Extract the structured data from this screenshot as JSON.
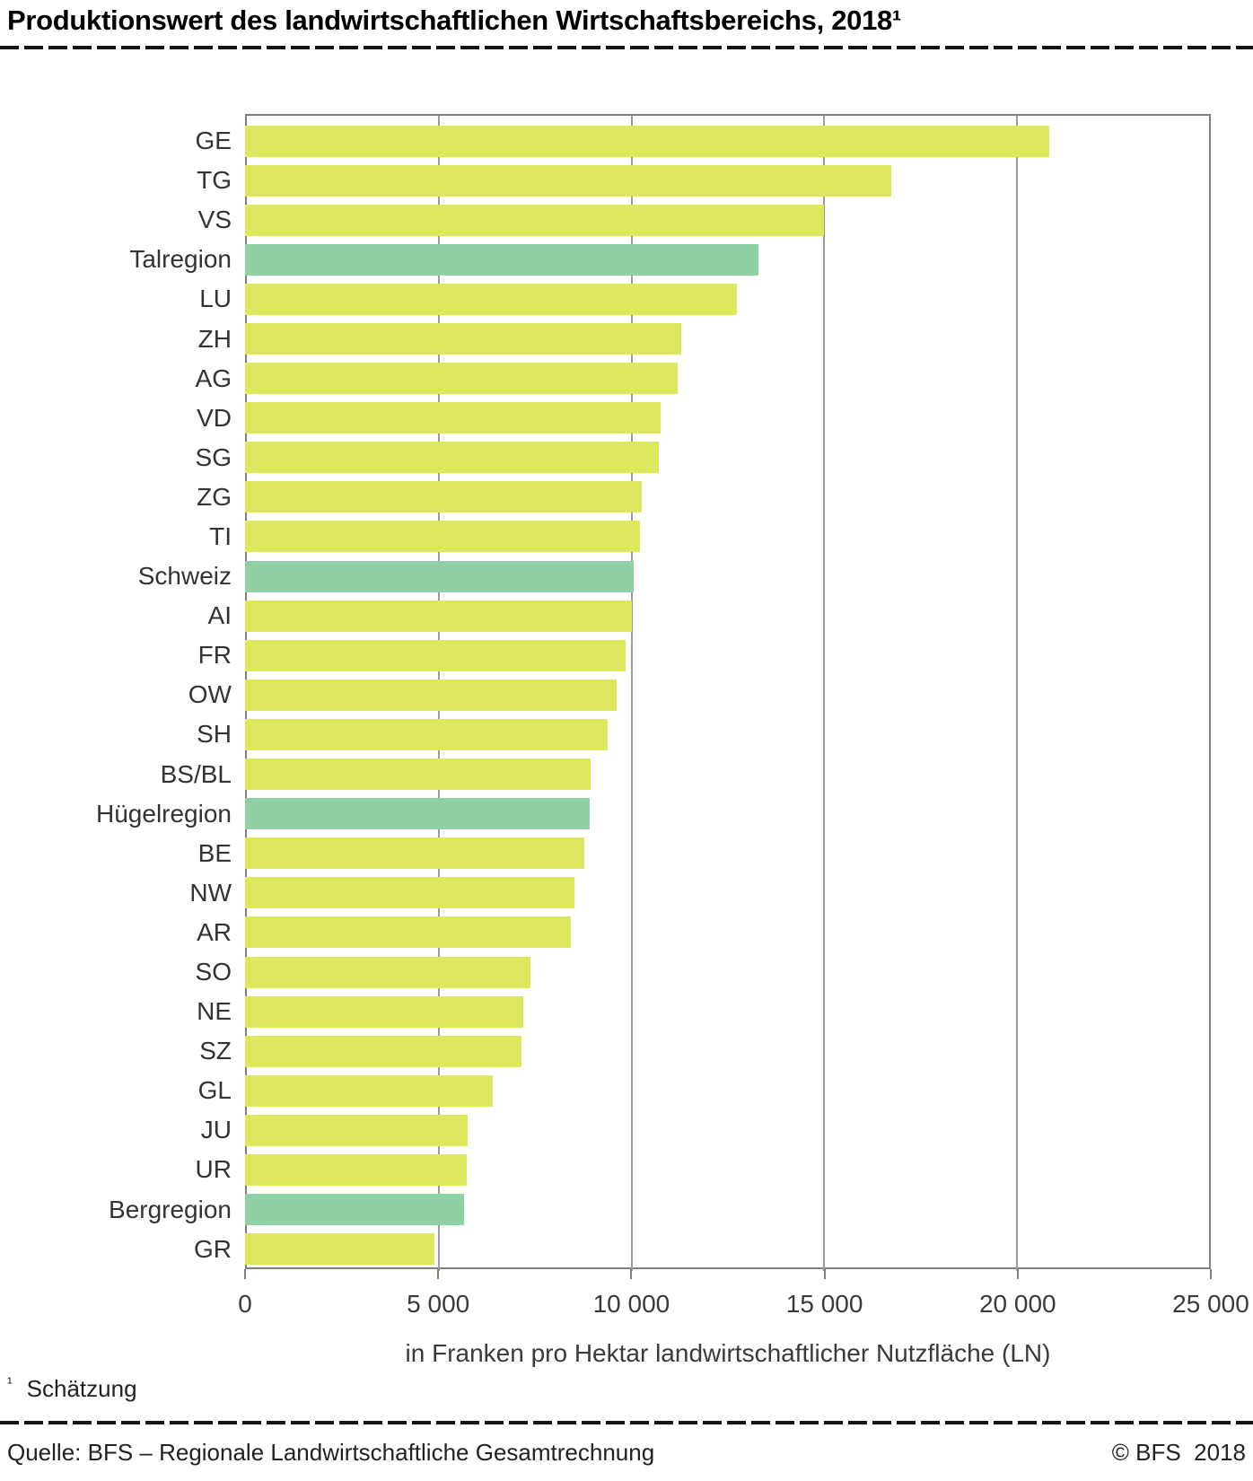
{
  "title": "Produktionswert des landwirtschaftlichen Wirtschaftsbereichs, 2018¹",
  "footnote": {
    "marker": "¹",
    "text": "Schätzung"
  },
  "source": {
    "left": "Quelle: BFS – Regionale Landwirtschaftliche Gesamtrechnung",
    "right": "© BFS  2018"
  },
  "chart_data": {
    "type": "bar",
    "orientation": "horizontal",
    "xlabel": "in Franken pro Hektar landwirtschaftlicher Nutzfläche (LN)",
    "xlim": [
      0,
      25000
    ],
    "xticks": [
      0,
      5000,
      10000,
      15000,
      20000,
      25000
    ],
    "xtick_labels": [
      "0",
      "5 000",
      "10 000",
      "15 000",
      "20 000",
      "25 000"
    ],
    "grid": "vertical",
    "legend": "none",
    "colors": {
      "canton": "#dde85f",
      "region": "#8fd1a4"
    },
    "bars": [
      {
        "label": "GE",
        "value": 20810,
        "type": "canton"
      },
      {
        "label": "TG",
        "value": 16730,
        "type": "canton"
      },
      {
        "label": "VS",
        "value": 14990,
        "type": "canton"
      },
      {
        "label": "Talregion",
        "value": 13280,
        "type": "region"
      },
      {
        "label": "LU",
        "value": 12740,
        "type": "canton"
      },
      {
        "label": "ZH",
        "value": 11290,
        "type": "canton"
      },
      {
        "label": "AG",
        "value": 11210,
        "type": "canton"
      },
      {
        "label": "VD",
        "value": 10760,
        "type": "canton"
      },
      {
        "label": "SG",
        "value": 10710,
        "type": "canton"
      },
      {
        "label": "ZG",
        "value": 10270,
        "type": "canton"
      },
      {
        "label": "TI",
        "value": 10220,
        "type": "canton"
      },
      {
        "label": "Schweiz",
        "value": 10060,
        "type": "region"
      },
      {
        "label": "AI",
        "value": 10020,
        "type": "canton"
      },
      {
        "label": "FR",
        "value": 9850,
        "type": "canton"
      },
      {
        "label": "OW",
        "value": 9620,
        "type": "canton"
      },
      {
        "label": "SH",
        "value": 9390,
        "type": "canton"
      },
      {
        "label": "BS/BL",
        "value": 8950,
        "type": "canton"
      },
      {
        "label": "Hügelregion",
        "value": 8930,
        "type": "region"
      },
      {
        "label": "BE",
        "value": 8780,
        "type": "canton"
      },
      {
        "label": "NW",
        "value": 8530,
        "type": "canton"
      },
      {
        "label": "AR",
        "value": 8440,
        "type": "canton"
      },
      {
        "label": "SO",
        "value": 7380,
        "type": "canton"
      },
      {
        "label": "NE",
        "value": 7200,
        "type": "canton"
      },
      {
        "label": "SZ",
        "value": 7150,
        "type": "canton"
      },
      {
        "label": "GL",
        "value": 6420,
        "type": "canton"
      },
      {
        "label": "JU",
        "value": 5760,
        "type": "canton"
      },
      {
        "label": "UR",
        "value": 5730,
        "type": "canton"
      },
      {
        "label": "Bergregion",
        "value": 5660,
        "type": "region"
      },
      {
        "label": "GR",
        "value": 4910,
        "type": "canton"
      }
    ]
  }
}
